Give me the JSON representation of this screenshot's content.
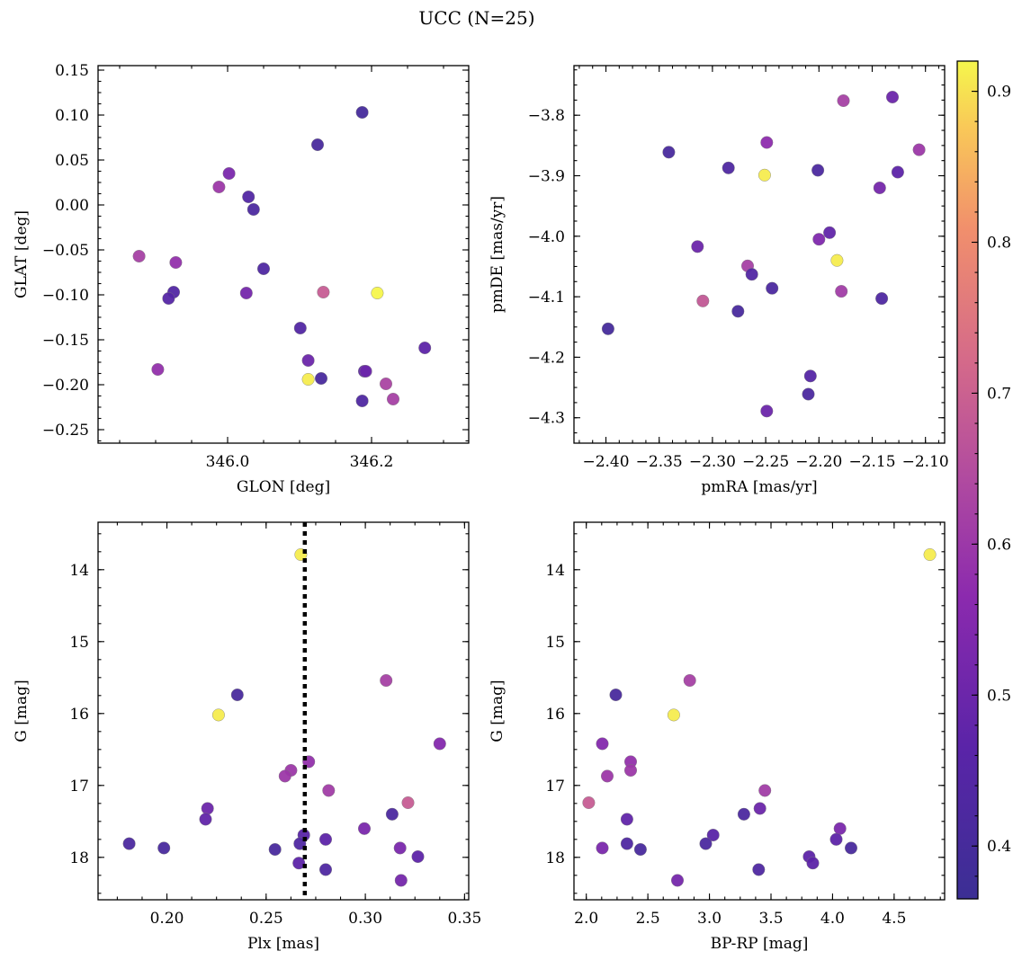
{
  "figure": {
    "title": "UCC (N=25)"
  },
  "colorbar": {
    "min": 0.365,
    "max": 0.92,
    "ticks": [
      0.4,
      0.5,
      0.6,
      0.7,
      0.8,
      0.9
    ],
    "tick_labels": [
      "0.4",
      "0.5",
      "0.6",
      "0.7",
      "0.8",
      "0.9"
    ],
    "colormap": "plasma"
  },
  "chart_data": [
    {
      "type": "scatter",
      "id": "glon-glat",
      "xlabel": "GLON [deg]",
      "ylabel": "GLAT [deg]",
      "xlim": [
        345.82,
        346.335
      ],
      "ylim": [
        -0.265,
        0.155
      ],
      "y_inverted": false,
      "xticks": [
        346.0,
        346.2
      ],
      "xtick_labels": [
        "346.0",
        "346.2"
      ],
      "yticks": [
        -0.25,
        -0.2,
        -0.15,
        -0.1,
        -0.05,
        0.0,
        0.05,
        0.1,
        0.15
      ],
      "ytick_labels": [
        "−0.25",
        "−0.20",
        "−0.15",
        "−0.10",
        "−0.05",
        "0.00",
        "0.05",
        "0.10",
        "0.15"
      ],
      "points": [
        {
          "x": 346.187,
          "y": 0.103,
          "c": 0.4
        },
        {
          "x": 346.125,
          "y": 0.067,
          "c": 0.41
        },
        {
          "x": 346.002,
          "y": 0.035,
          "c": 0.53
        },
        {
          "x": 345.988,
          "y": 0.02,
          "c": 0.6
        },
        {
          "x": 346.029,
          "y": 0.009,
          "c": 0.44
        },
        {
          "x": 346.036,
          "y": -0.005,
          "c": 0.42
        },
        {
          "x": 345.877,
          "y": -0.057,
          "c": 0.62
        },
        {
          "x": 345.928,
          "y": -0.064,
          "c": 0.58
        },
        {
          "x": 346.05,
          "y": -0.071,
          "c": 0.43
        },
        {
          "x": 345.925,
          "y": -0.097,
          "c": 0.44
        },
        {
          "x": 346.026,
          "y": -0.098,
          "c": 0.52
        },
        {
          "x": 346.133,
          "y": -0.097,
          "c": 0.69
        },
        {
          "x": 346.208,
          "y": -0.098,
          "c": 0.92
        },
        {
          "x": 345.918,
          "y": -0.104,
          "c": 0.45
        },
        {
          "x": 346.101,
          "y": -0.137,
          "c": 0.44
        },
        {
          "x": 346.274,
          "y": -0.159,
          "c": 0.47
        },
        {
          "x": 346.112,
          "y": -0.173,
          "c": 0.5
        },
        {
          "x": 345.903,
          "y": -0.183,
          "c": 0.58
        },
        {
          "x": 346.19,
          "y": -0.185,
          "c": 0.47
        },
        {
          "x": 346.192,
          "y": -0.185,
          "c": 0.5
        },
        {
          "x": 346.13,
          "y": -0.193,
          "c": 0.41
        },
        {
          "x": 346.112,
          "y": -0.194,
          "c": 0.91
        },
        {
          "x": 346.22,
          "y": -0.199,
          "c": 0.63
        },
        {
          "x": 346.187,
          "y": -0.218,
          "c": 0.43
        },
        {
          "x": 346.23,
          "y": -0.216,
          "c": 0.62
        }
      ]
    },
    {
      "type": "scatter",
      "id": "pmra-pmde",
      "xlabel": "pmRA [mas/yr]",
      "ylabel": "pmDE [mas/yr]",
      "xlim": [
        -2.43,
        -2.082
      ],
      "ylim": [
        -4.342,
        -3.718
      ],
      "y_inverted": false,
      "xticks": [
        -2.4,
        -2.35,
        -2.3,
        -2.25,
        -2.2,
        -2.15,
        -2.1
      ],
      "xtick_labels": [
        "−2.40",
        "−2.35",
        "−2.30",
        "−2.25",
        "−2.20",
        "−2.15",
        "−2.10"
      ],
      "yticks": [
        -4.3,
        -4.2,
        -4.1,
        -4.0,
        -3.9,
        -3.8
      ],
      "ytick_labels": [
        "−4.3",
        "−4.2",
        "−4.1",
        "−4.0",
        "−3.9",
        "−3.8"
      ],
      "points": [
        {
          "x": -2.131,
          "y": -3.77,
          "c": 0.5
        },
        {
          "x": -2.177,
          "y": -3.776,
          "c": 0.62
        },
        {
          "x": -2.249,
          "y": -3.845,
          "c": 0.57
        },
        {
          "x": -2.106,
          "y": -3.857,
          "c": 0.6
        },
        {
          "x": -2.341,
          "y": -3.861,
          "c": 0.41
        },
        {
          "x": -2.285,
          "y": -3.887,
          "c": 0.43
        },
        {
          "x": -2.201,
          "y": -3.891,
          "c": 0.42
        },
        {
          "x": -2.126,
          "y": -3.894,
          "c": 0.47
        },
        {
          "x": -2.251,
          "y": -3.899,
          "c": 0.91
        },
        {
          "x": -2.143,
          "y": -3.92,
          "c": 0.52
        },
        {
          "x": -2.19,
          "y": -3.994,
          "c": 0.48
        },
        {
          "x": -2.2,
          "y": -4.005,
          "c": 0.54
        },
        {
          "x": -2.314,
          "y": -4.017,
          "c": 0.5
        },
        {
          "x": -2.183,
          "y": -4.04,
          "c": 0.91
        },
        {
          "x": -2.267,
          "y": -4.049,
          "c": 0.62
        },
        {
          "x": -2.263,
          "y": -4.063,
          "c": 0.44
        },
        {
          "x": -2.244,
          "y": -4.086,
          "c": 0.42
        },
        {
          "x": -2.179,
          "y": -4.091,
          "c": 0.61
        },
        {
          "x": -2.141,
          "y": -4.103,
          "c": 0.43
        },
        {
          "x": -2.309,
          "y": -4.107,
          "c": 0.68
        },
        {
          "x": -2.276,
          "y": -4.124,
          "c": 0.41
        },
        {
          "x": -2.398,
          "y": -4.153,
          "c": 0.4
        },
        {
          "x": -2.208,
          "y": -4.231,
          "c": 0.45
        },
        {
          "x": -2.21,
          "y": -4.261,
          "c": 0.42
        },
        {
          "x": -2.249,
          "y": -4.289,
          "c": 0.5
        }
      ]
    },
    {
      "type": "scatter",
      "id": "plx-g",
      "xlabel": "Plx [mas]",
      "ylabel": "G [mag]",
      "xlim": [
        0.1653,
        0.3521
      ],
      "ylim": [
        13.34,
        18.59
      ],
      "y_inverted": true,
      "vline": 0.2695,
      "xticks": [
        0.2,
        0.25,
        0.3,
        0.35
      ],
      "xtick_labels": [
        "0.20",
        "0.25",
        "0.30",
        "0.35"
      ],
      "yticks": [
        14,
        15,
        16,
        17,
        18
      ],
      "ytick_labels": [
        "14",
        "15",
        "16",
        "17",
        "18"
      ],
      "points": [
        {
          "x": 0.2675,
          "y": 13.79,
          "c": 0.91
        },
        {
          "x": 0.3105,
          "y": 15.54,
          "c": 0.62
        },
        {
          "x": 0.2355,
          "y": 15.74,
          "c": 0.41
        },
        {
          "x": 0.226,
          "y": 16.02,
          "c": 0.91
        },
        {
          "x": 0.3375,
          "y": 16.42,
          "c": 0.55
        },
        {
          "x": 0.2715,
          "y": 16.67,
          "c": 0.58
        },
        {
          "x": 0.2625,
          "y": 16.79,
          "c": 0.6
        },
        {
          "x": 0.2595,
          "y": 16.87,
          "c": 0.6
        },
        {
          "x": 0.2815,
          "y": 17.07,
          "c": 0.61
        },
        {
          "x": 0.3215,
          "y": 17.24,
          "c": 0.69
        },
        {
          "x": 0.2205,
          "y": 17.32,
          "c": 0.5
        },
        {
          "x": 0.3135,
          "y": 17.4,
          "c": 0.42
        },
        {
          "x": 0.2195,
          "y": 17.47,
          "c": 0.48
        },
        {
          "x": 0.2995,
          "y": 17.6,
          "c": 0.53
        },
        {
          "x": 0.269,
          "y": 17.69,
          "c": 0.46
        },
        {
          "x": 0.28,
          "y": 17.75,
          "c": 0.47
        },
        {
          "x": 0.267,
          "y": 17.81,
          "c": 0.43
        },
        {
          "x": 0.181,
          "y": 17.81,
          "c": 0.42
        },
        {
          "x": 0.1985,
          "y": 17.87,
          "c": 0.41
        },
        {
          "x": 0.3175,
          "y": 17.87,
          "c": 0.53
        },
        {
          "x": 0.2545,
          "y": 17.89,
          "c": 0.41
        },
        {
          "x": 0.3265,
          "y": 17.99,
          "c": 0.47
        },
        {
          "x": 0.2665,
          "y": 18.08,
          "c": 0.47
        },
        {
          "x": 0.28,
          "y": 18.17,
          "c": 0.43
        },
        {
          "x": 0.318,
          "y": 18.32,
          "c": 0.52
        }
      ]
    },
    {
      "type": "scatter",
      "id": "bprp-g",
      "xlabel": "BP-RP [mag]",
      "ylabel": "G [mag]",
      "xlim": [
        1.9,
        4.91
      ],
      "ylim": [
        13.34,
        18.59
      ],
      "y_inverted": true,
      "xticks": [
        2.0,
        2.5,
        3.0,
        3.5,
        4.0,
        4.5
      ],
      "xtick_labels": [
        "2.0",
        "2.5",
        "3.0",
        "3.5",
        "4.0",
        "4.5"
      ],
      "yticks": [
        14,
        15,
        16,
        17,
        18
      ],
      "ytick_labels": [
        "14",
        "15",
        "16",
        "17",
        "18"
      ],
      "points": [
        {
          "x": 4.79,
          "y": 13.79,
          "c": 0.91
        },
        {
          "x": 2.84,
          "y": 15.54,
          "c": 0.62
        },
        {
          "x": 2.24,
          "y": 15.74,
          "c": 0.41
        },
        {
          "x": 2.71,
          "y": 16.02,
          "c": 0.91
        },
        {
          "x": 2.13,
          "y": 16.42,
          "c": 0.55
        },
        {
          "x": 2.36,
          "y": 16.67,
          "c": 0.58
        },
        {
          "x": 2.36,
          "y": 16.79,
          "c": 0.6
        },
        {
          "x": 2.17,
          "y": 16.87,
          "c": 0.6
        },
        {
          "x": 3.45,
          "y": 17.07,
          "c": 0.61
        },
        {
          "x": 2.02,
          "y": 17.24,
          "c": 0.69
        },
        {
          "x": 3.41,
          "y": 17.32,
          "c": 0.5
        },
        {
          "x": 3.28,
          "y": 17.4,
          "c": 0.42
        },
        {
          "x": 2.33,
          "y": 17.47,
          "c": 0.48
        },
        {
          "x": 4.06,
          "y": 17.6,
          "c": 0.53
        },
        {
          "x": 3.03,
          "y": 17.69,
          "c": 0.46
        },
        {
          "x": 4.03,
          "y": 17.75,
          "c": 0.47
        },
        {
          "x": 2.33,
          "y": 17.81,
          "c": 0.43
        },
        {
          "x": 2.97,
          "y": 17.81,
          "c": 0.42
        },
        {
          "x": 4.15,
          "y": 17.87,
          "c": 0.41
        },
        {
          "x": 2.13,
          "y": 17.87,
          "c": 0.53
        },
        {
          "x": 2.44,
          "y": 17.89,
          "c": 0.41
        },
        {
          "x": 3.81,
          "y": 17.99,
          "c": 0.47
        },
        {
          "x": 3.84,
          "y": 18.08,
          "c": 0.47
        },
        {
          "x": 3.4,
          "y": 18.17,
          "c": 0.43
        },
        {
          "x": 2.74,
          "y": 18.32,
          "c": 0.52
        }
      ]
    }
  ]
}
